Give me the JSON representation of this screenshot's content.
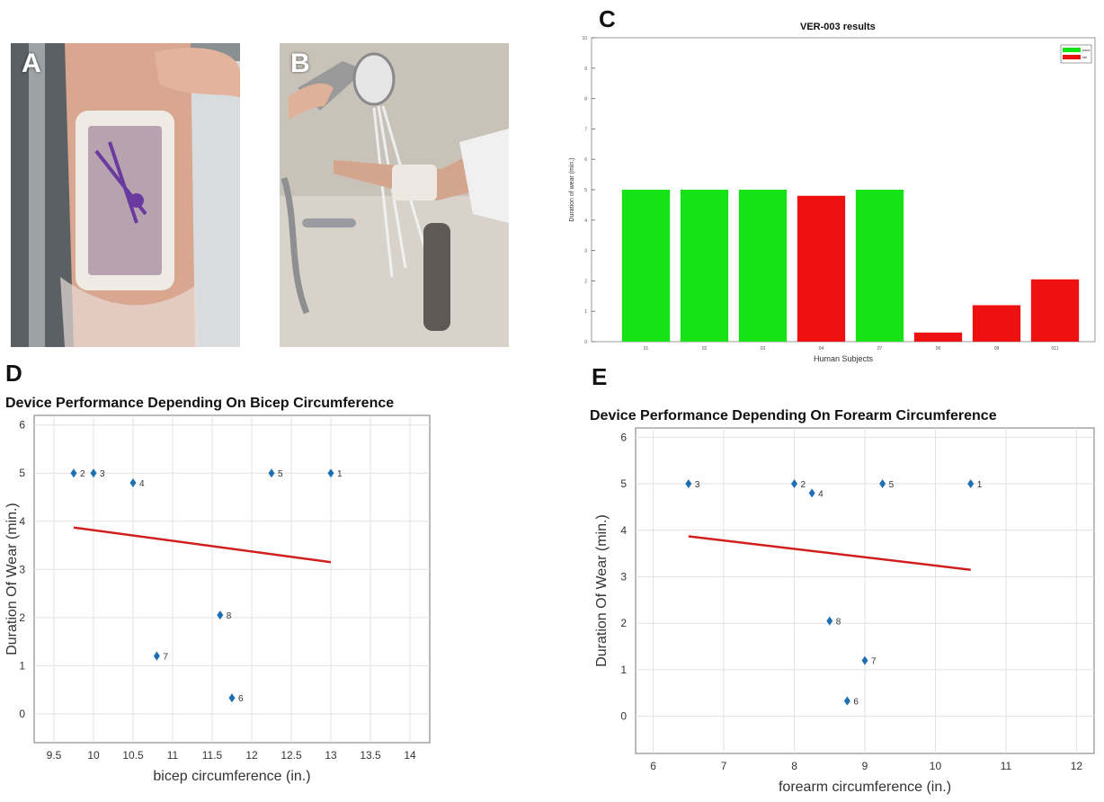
{
  "panels": {
    "a": {
      "letter": "A"
    },
    "b": {
      "letter": "B"
    },
    "c": {
      "letter": "C"
    },
    "d": {
      "letter": "D"
    },
    "e": {
      "letter": "E"
    }
  },
  "colors": {
    "pass": "#16e316",
    "fail": "#ee1111",
    "marker": "#1f6fb4",
    "fit": "#d11f1f",
    "grid": "#e2e2e2"
  },
  "chart_data": [
    {
      "id": "C",
      "type": "bar",
      "title": "VER-003 results",
      "xlabel": "Human Subjects",
      "ylabel": "Duration of wear (min.)",
      "categories": [
        "01",
        "02",
        "03",
        "04",
        "07",
        "06",
        "08",
        "011"
      ],
      "values": [
        5,
        5,
        5,
        4.8,
        5,
        0.3,
        1.2,
        2.05
      ],
      "bar_status": [
        "pass",
        "pass",
        "pass",
        "fail",
        "pass",
        "fail",
        "fail",
        "fail"
      ],
      "ylim": [
        0,
        10
      ],
      "yticks": [
        "0",
        "1",
        "2",
        "3",
        "4",
        "5",
        "6",
        "7",
        "8",
        "9",
        "10"
      ],
      "legend": {
        "placement": "top-right",
        "entries": [
          {
            "label": "pass",
            "status": "pass"
          },
          {
            "label": "fail",
            "status": "fail"
          }
        ]
      },
      "grid": false
    },
    {
      "id": "D",
      "type": "scatter",
      "title": "Device Performance Depending On Bicep Circumference",
      "xlabel": "bicep circumference (in.)",
      "ylabel": "Duration Of Wear (min.)",
      "xlim": [
        9.25,
        14.25
      ],
      "ylim": [
        -0.6,
        6.2
      ],
      "xticks": [
        "9.5",
        "10",
        "10.5",
        "11",
        "11.5",
        "12",
        "12.5",
        "13",
        "13.5",
        "14"
      ],
      "yticks": [
        "0",
        "1",
        "2",
        "3",
        "4",
        "5",
        "6"
      ],
      "points": [
        {
          "label": "1",
          "x": 13.0,
          "y": 5.0
        },
        {
          "label": "2",
          "x": 9.75,
          "y": 5.0
        },
        {
          "label": "3",
          "x": 10.0,
          "y": 5.0
        },
        {
          "label": "4",
          "x": 10.5,
          "y": 4.8
        },
        {
          "label": "5",
          "x": 12.25,
          "y": 5.0
        },
        {
          "label": "6",
          "x": 11.75,
          "y": 0.33
        },
        {
          "label": "7",
          "x": 10.8,
          "y": 1.2
        },
        {
          "label": "8",
          "x": 11.6,
          "y": 2.05
        }
      ],
      "trendline": {
        "x": [
          9.75,
          13.0
        ],
        "y": [
          3.87,
          3.15
        ]
      },
      "grid": true
    },
    {
      "id": "E",
      "type": "scatter",
      "title": "Device Performance Depending On Forearm Circumference",
      "xlabel": "forearm circumference (in.)",
      "ylabel": "Duration Of Wear (min.)",
      "xlim": [
        5.75,
        12.25
      ],
      "ylim": [
        -0.8,
        6.2
      ],
      "xticks": [
        "6",
        "7",
        "8",
        "9",
        "10",
        "11",
        "12"
      ],
      "yticks": [
        "0",
        "1",
        "2",
        "3",
        "4",
        "5",
        "6"
      ],
      "points": [
        {
          "label": "1",
          "x": 10.5,
          "y": 5.0
        },
        {
          "label": "2",
          "x": 8.0,
          "y": 5.0
        },
        {
          "label": "3",
          "x": 6.5,
          "y": 5.0
        },
        {
          "label": "4",
          "x": 8.25,
          "y": 4.8
        },
        {
          "label": "5",
          "x": 9.25,
          "y": 5.0
        },
        {
          "label": "6",
          "x": 8.75,
          "y": 0.33
        },
        {
          "label": "7",
          "x": 9.0,
          "y": 1.2
        },
        {
          "label": "8",
          "x": 8.5,
          "y": 2.05
        }
      ],
      "trendline": {
        "x": [
          6.5,
          10.5
        ],
        "y": [
          3.87,
          3.15
        ]
      },
      "grid": true
    }
  ]
}
